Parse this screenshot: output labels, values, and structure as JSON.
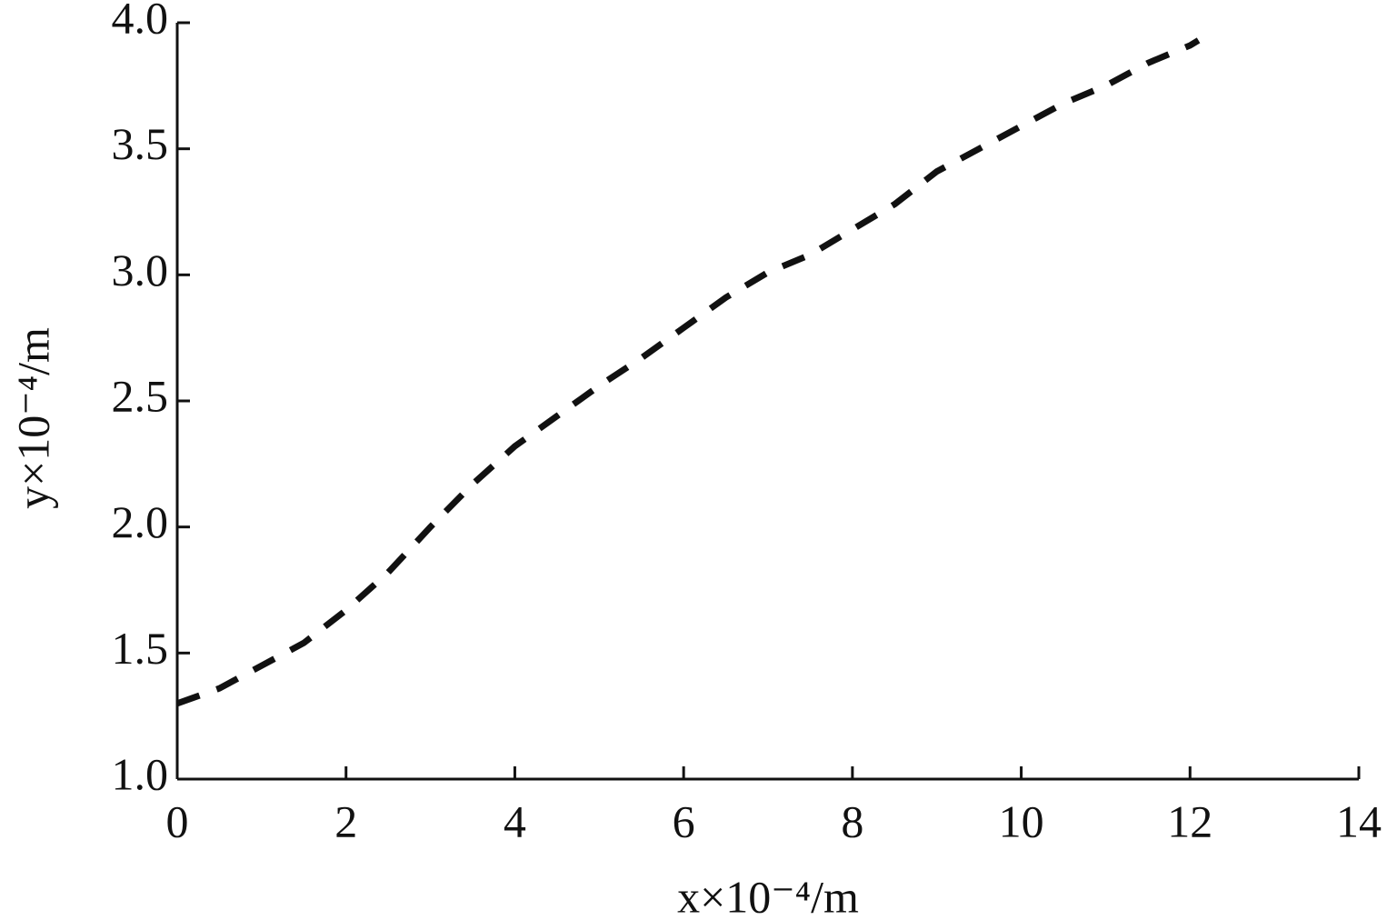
{
  "chart_data": {
    "type": "line",
    "xlabel": "x×10⁻⁴/m",
    "ylabel": "y×10⁻⁴/m",
    "x": [
      0,
      0.5,
      1,
      1.5,
      2,
      2.5,
      3,
      3.5,
      4,
      4.5,
      5,
      5.5,
      6,
      6.5,
      7,
      7.5,
      8,
      8.5,
      9,
      9.5,
      10,
      10.5,
      11,
      11.5,
      12,
      12.1
    ],
    "series": [
      {
        "color": "#111111",
        "values": [
          1.3,
          1.36,
          1.45,
          1.54,
          1.67,
          1.82,
          2.0,
          2.17,
          2.32,
          2.44,
          2.56,
          2.67,
          2.79,
          2.91,
          3.01,
          3.08,
          3.18,
          3.28,
          3.41,
          3.5,
          3.59,
          3.68,
          3.75,
          3.84,
          3.91,
          3.93
        ]
      }
    ],
    "xlim": [
      0,
      14
    ],
    "xticks": [
      0,
      2,
      4,
      6,
      8,
      10,
      12,
      14
    ],
    "ylim": [
      1.0,
      4.0
    ],
    "yticks": [
      {
        "value": 1.0,
        "label": "1.0"
      },
      {
        "value": 1.5,
        "label": "1.5"
      },
      {
        "value": 2.0,
        "label": "2.0"
      },
      {
        "value": 2.5,
        "label": "2.5"
      },
      {
        "value": 3.0,
        "label": "3.0"
      },
      {
        "value": 3.5,
        "label": "3.5"
      },
      {
        "value": 4.0,
        "label": "4.0"
      }
    ],
    "dashed": true,
    "grid": false
  }
}
